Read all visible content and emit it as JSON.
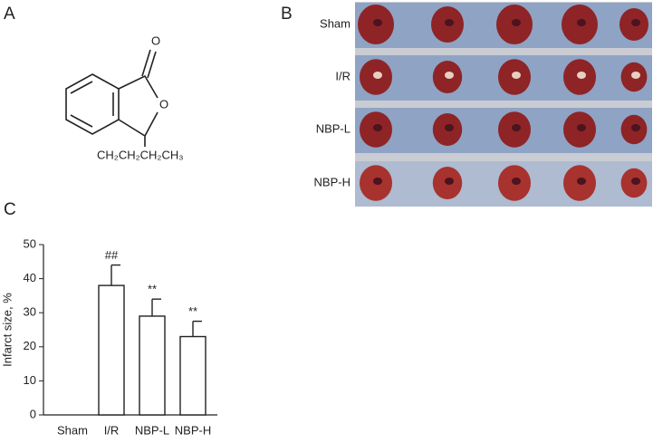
{
  "panels": {
    "a": {
      "label": "A",
      "atoms": [
        "O",
        "O",
        "CH₂CH₂CH₂CH₃"
      ]
    },
    "b": {
      "label": "B",
      "rows": [
        "Sham",
        "I/R",
        "NBP-L",
        "NBP-H"
      ]
    },
    "c": {
      "label": "C"
    }
  },
  "chart_data": {
    "type": "bar",
    "y_label": "Infarct size, %",
    "categories": [
      "Sham",
      "I/R",
      "NBP-L",
      "NBP-H"
    ],
    "values": [
      0,
      38,
      29,
      23
    ],
    "errors": [
      0,
      6,
      5,
      4.5
    ],
    "annotations": [
      null,
      "##",
      "**",
      "**"
    ],
    "color": "#ffffff",
    "ylim": [
      0,
      50
    ],
    "yticks": [
      0,
      10,
      20,
      30,
      40,
      50
    ]
  }
}
